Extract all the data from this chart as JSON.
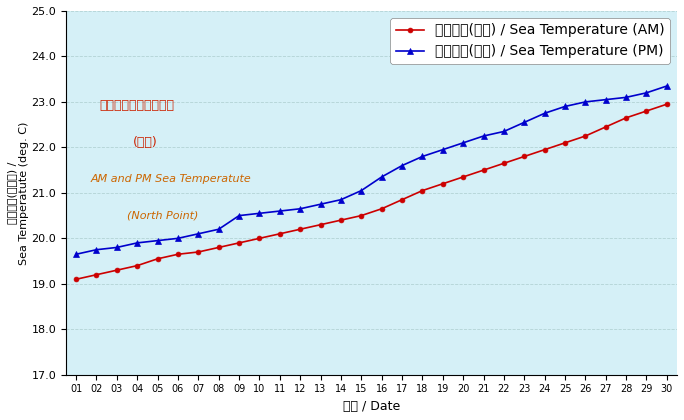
{
  "days": [
    1,
    2,
    3,
    4,
    5,
    6,
    7,
    8,
    9,
    10,
    11,
    12,
    13,
    14,
    15,
    16,
    17,
    18,
    19,
    20,
    21,
    22,
    23,
    24,
    25,
    26,
    27,
    28,
    29,
    30
  ],
  "am_temp": [
    19.1,
    19.2,
    19.3,
    19.4,
    19.55,
    19.65,
    19.7,
    19.8,
    19.9,
    20.0,
    20.1,
    20.2,
    20.3,
    20.4,
    20.5,
    20.65,
    20.85,
    21.05,
    21.2,
    21.35,
    21.5,
    21.65,
    21.8,
    21.95,
    22.1,
    22.25,
    22.45,
    22.65,
    22.8,
    22.95
  ],
  "pm_temp": [
    19.65,
    19.75,
    19.8,
    19.9,
    19.95,
    20.0,
    20.1,
    20.2,
    20.5,
    20.55,
    20.6,
    20.65,
    20.75,
    20.85,
    21.05,
    21.35,
    21.6,
    21.8,
    21.95,
    22.1,
    22.25,
    22.35,
    22.55,
    22.75,
    22.9,
    23.0,
    23.05,
    23.1,
    23.2,
    23.35
  ],
  "ylim": [
    17.0,
    25.0
  ],
  "yticks": [
    17.0,
    18.0,
    19.0,
    20.0,
    21.0,
    22.0,
    23.0,
    24.0,
    25.0
  ],
  "xlabel": "日期 / Date",
  "ylabel_zh": "海水温度(攝氏度) /",
  "ylabel_en": "Sea Temperatute (deg. C)",
  "legend_am": "海水温度(上午) / Sea Temperature (AM)",
  "legend_pm": "海水温度(下午) / Sea Temperature (PM)",
  "annotation_line1": "上午及下午的海水温度",
  "annotation_line2": "(北角)",
  "annotation_line3": "AM and PM Sea Temperatute",
  "annotation_line4": "(North Point)",
  "am_color": "#cc0000",
  "pm_color": "#0000cc",
  "bg_color": "#d5f0f7",
  "grid_color": "#aacccc",
  "annotation_color_zh": "#cc2200",
  "annotation_color_en": "#cc6600"
}
